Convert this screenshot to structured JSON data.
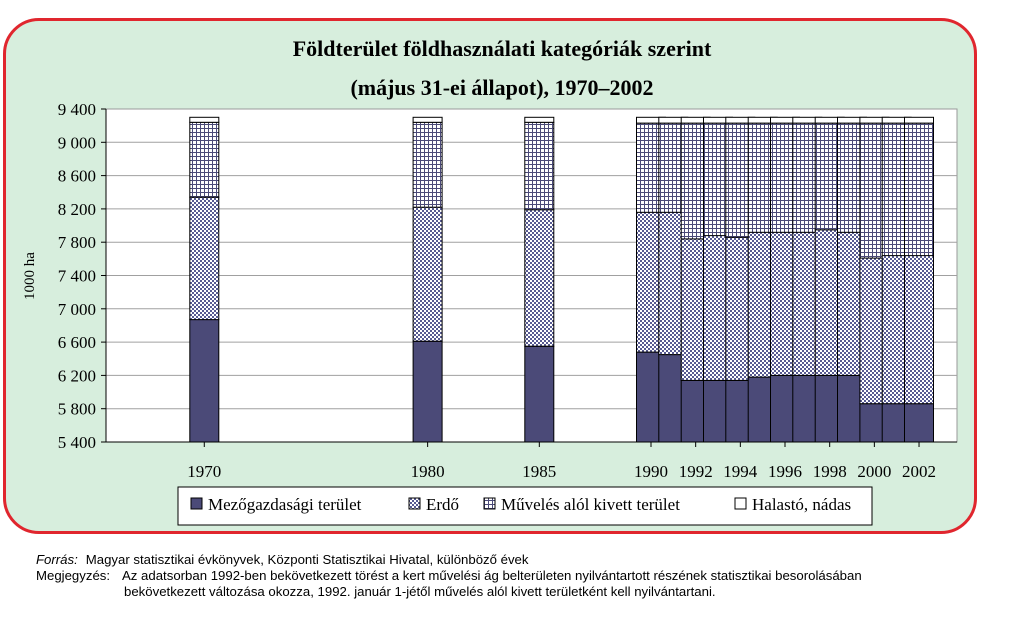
{
  "chart_data": {
    "type": "bar",
    "stacked": true,
    "title": [
      "Földterület földhasználati kategóriák szerint",
      "(május 31-ei állapot), 1970–2002"
    ],
    "ylabel": "1000 ha",
    "ylim": [
      5400,
      9400
    ],
    "yticks": [
      "9 400",
      "9 000",
      "8 600",
      "8 200",
      "7 800",
      "7 400",
      "7 000",
      "6 600",
      "6 200",
      "5 800",
      "5 400"
    ],
    "ytick_values": [
      9400,
      9000,
      8600,
      8200,
      7800,
      7400,
      7000,
      6600,
      6200,
      5800,
      5400
    ],
    "x_tick_labels": [
      "1970",
      "1980",
      "1985",
      "1990",
      "1992",
      "1994",
      "1996",
      "1998",
      "2000",
      "2002"
    ],
    "x": [
      1970,
      1980,
      1985,
      1990,
      1991,
      1992,
      1993,
      1994,
      1995,
      1996,
      1997,
      1998,
      1999,
      2000,
      2001,
      2002
    ],
    "grid": true,
    "legend_position": "bottom",
    "series": [
      {
        "name": "Mezőgazdasági terület",
        "pattern": "solid",
        "cumulative": [
          6870,
          6610,
          6550,
          6480,
          6450,
          6140,
          6140,
          6140,
          6180,
          6200,
          6200,
          6200,
          6200,
          5860,
          5860,
          5860
        ]
      },
      {
        "name": "Erdő",
        "pattern": "dots",
        "cumulative": [
          8340,
          8220,
          8190,
          8160,
          8160,
          7840,
          7880,
          7860,
          7920,
          7920,
          7920,
          7950,
          7920,
          7610,
          7640,
          7640
        ]
      },
      {
        "name": "Művelés alól kivett terület",
        "pattern": "grid",
        "cumulative": [
          9240,
          9240,
          9240,
          9230,
          9230,
          9230,
          9230,
          9230,
          9230,
          9230,
          9230,
          9230,
          9230,
          9230,
          9230,
          9230
        ]
      },
      {
        "name": "Halastó, nádas",
        "pattern": "white",
        "cumulative": [
          9300,
          9300,
          9300,
          9300,
          9300,
          9300,
          9300,
          9300,
          9300,
          9300,
          9300,
          9300,
          9300,
          9300,
          9300,
          9300
        ]
      }
    ]
  },
  "colors": {
    "frame_border": "#e0262e",
    "frame_background": "#d7eedd",
    "plot_background": "#ffffff",
    "agri": "#4b4a78",
    "forest_pattern": "#585b92",
    "withdrawn_pattern": "#4b4a78"
  },
  "footer": {
    "source_label": "Forrás:",
    "source_text": "Magyar statisztikai évkönyvek, Központi Statisztikai Hivatal, különböző évek",
    "note_label": "Megjegyzés:",
    "note_line1": "Az adatsorban 1992-ben bekövetkezett törést a kert művelési ág belterületen nyilvántartott részének statisztikai besorolásában",
    "note_line2": "bekövetkezett változása okozza, 1992. január 1-jétől művelés alól kivett területként kell nyilvántartani."
  }
}
